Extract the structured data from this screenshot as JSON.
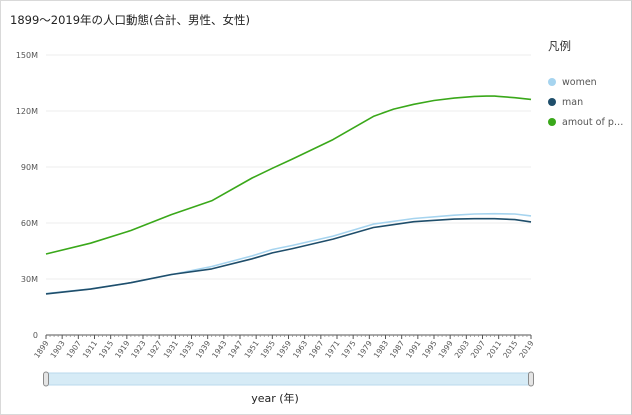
{
  "title": "1899〜2019年の人口動態(合計、男性、女性)",
  "legend": {
    "title": "凡例",
    "items": [
      {
        "label": "women",
        "color": "#a6d4ef"
      },
      {
        "label": "man",
        "color": "#1f4e6b"
      },
      {
        "label": "amout of p…",
        "color": "#3aa81a"
      }
    ]
  },
  "chart_data": {
    "type": "line",
    "xlabel": "year (年)",
    "ylabel": "",
    "ylim": [
      0,
      150000000
    ],
    "yticks": [
      0,
      30000000,
      60000000,
      90000000,
      120000000,
      150000000
    ],
    "ytick_labels": [
      "0",
      "30M",
      "60M",
      "90M",
      "120M",
      "150M"
    ],
    "xtick_labels": [
      "1899",
      "1903",
      "1907",
      "1911",
      "1915",
      "1919",
      "1923",
      "1927",
      "1931",
      "1935",
      "1939",
      "1943",
      "1947",
      "1951",
      "1955",
      "1959",
      "1963",
      "1967",
      "1971",
      "1975",
      "1979",
      "1983",
      "1987",
      "1991",
      "1995",
      "1999",
      "2003",
      "2007",
      "2011",
      "2015",
      "2019"
    ],
    "xlim": [
      1899,
      2019
    ],
    "grid": true,
    "series": [
      {
        "name": "women",
        "color": "#a6d4ef",
        "x": [
          1899,
          1910,
          1920,
          1930,
          1940,
          1950,
          1955,
          1960,
          1970,
          1980,
          1990,
          2000,
          2005,
          2010,
          2015,
          2019
        ],
        "y": [
          22200000,
          24700000,
          28000000,
          32300000,
          36700000,
          42400000,
          45800000,
          48000000,
          53000000,
          59400000,
          62400000,
          64200000,
          64800000,
          65000000,
          64800000,
          63800000
        ]
      },
      {
        "name": "man",
        "color": "#1f4e6b",
        "x": [
          1899,
          1910,
          1920,
          1930,
          1940,
          1950,
          1955,
          1960,
          1970,
          1980,
          1990,
          2000,
          2005,
          2010,
          2015,
          2019
        ],
        "y": [
          22000000,
          24600000,
          28000000,
          32400000,
          35400000,
          40800000,
          44000000,
          46300000,
          51400000,
          57600000,
          60700000,
          62100000,
          62300000,
          62300000,
          61800000,
          60600000
        ]
      },
      {
        "name": "amout of p…",
        "color": "#3aa81a",
        "x": [
          1899,
          1910,
          1920,
          1930,
          1940,
          1950,
          1955,
          1960,
          1970,
          1980,
          1985,
          1990,
          1995,
          2000,
          2005,
          2008,
          2010,
          2011,
          2015,
          2019
        ],
        "y": [
          43400000,
          49200000,
          56000000,
          64500000,
          71900000,
          84100000,
          89300000,
          94300000,
          104700000,
          117100000,
          121000000,
          123600000,
          125600000,
          126900000,
          127800000,
          128000000,
          128000000,
          127800000,
          127100000,
          126200000
        ]
      }
    ]
  }
}
